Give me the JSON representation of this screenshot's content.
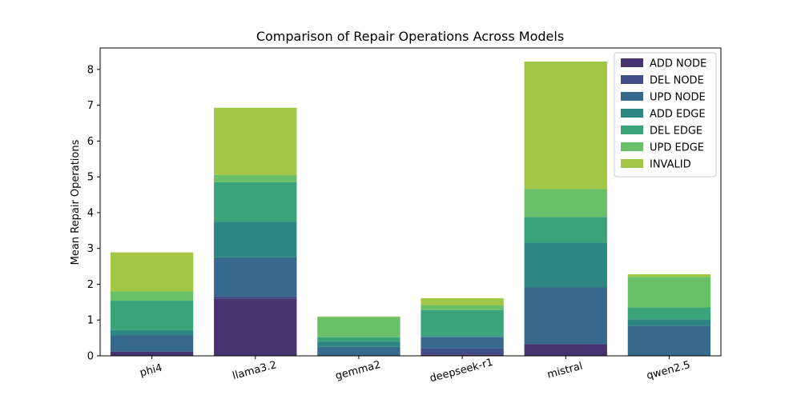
{
  "chart_data": {
    "type": "bar",
    "stacked": true,
    "title": "Comparison of Repair Operations Across Models",
    "xlabel": "",
    "ylabel": "Mean Repair Operations",
    "ylim": [
      0,
      8.6
    ],
    "yticks": [
      0,
      1,
      2,
      3,
      4,
      5,
      6,
      7,
      8
    ],
    "grid": false,
    "legend_position": "top-right",
    "categories": [
      "phi4",
      "llama3.2",
      "gemma2",
      "deepseek-r1",
      "mistral",
      "qwen2.5"
    ],
    "series": [
      {
        "name": "ADD NODE",
        "color": "#46326e",
        "values": [
          0.12,
          1.6,
          0.0,
          0.04,
          0.33,
          0.01
        ]
      },
      {
        "name": "DEL NODE",
        "color": "#414f88",
        "values": [
          0.0,
          0.07,
          0.0,
          0.17,
          0.0,
          0.0
        ]
      },
      {
        "name": "UPD NODE",
        "color": "#37698c",
        "values": [
          0.45,
          1.08,
          0.25,
          0.31,
          1.58,
          0.83
        ]
      },
      {
        "name": "ADD EDGE",
        "color": "#2d8682",
        "values": [
          0.15,
          1.0,
          0.15,
          0.03,
          1.25,
          0.18
        ]
      },
      {
        "name": "DEL EDGE",
        "color": "#3aa37a",
        "values": [
          0.82,
          1.1,
          0.12,
          0.73,
          0.72,
          0.33
        ]
      },
      {
        "name": "UPD EDGE",
        "color": "#6abf69",
        "values": [
          0.26,
          0.2,
          0.56,
          0.14,
          0.78,
          0.85
        ]
      },
      {
        "name": "INVALID",
        "color": "#a3c646",
        "values": [
          1.09,
          1.88,
          0.02,
          0.19,
          3.56,
          0.08
        ]
      }
    ]
  }
}
